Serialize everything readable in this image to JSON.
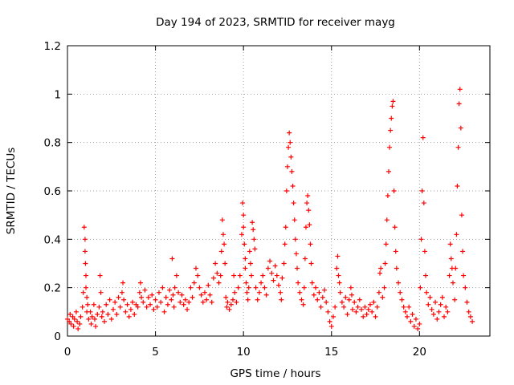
{
  "chart_data": {
    "type": "scatter",
    "title": "Day 194 of 2023, SRMTID for receiver mayg",
    "xlabel": "GPS time / hours",
    "ylabel": "SRMTID / TECUs",
    "xlim": [
      0,
      24
    ],
    "ylim": [
      0,
      1.2
    ],
    "xticks": [
      0,
      5,
      10,
      15,
      20
    ],
    "xtick_labels": [
      "0",
      "5",
      "10",
      "15",
      "20"
    ],
    "yticks": [
      0,
      0.2,
      0.4,
      0.6,
      0.8,
      1.0,
      1.2
    ],
    "ytick_labels": [
      "0",
      "0.2",
      "0.4",
      "0.6",
      "0.8",
      "1",
      "1.2"
    ],
    "grid": true,
    "marker": "+",
    "color": "#ff0000",
    "series": [
      {
        "name": "SRMTID",
        "points": [
          [
            0.0,
            0.07
          ],
          [
            0.1,
            0.06
          ],
          [
            0.15,
            0.09
          ],
          [
            0.2,
            0.05
          ],
          [
            0.3,
            0.08
          ],
          [
            0.35,
            0.04
          ],
          [
            0.4,
            0.07
          ],
          [
            0.5,
            0.1
          ],
          [
            0.55,
            0.06
          ],
          [
            0.6,
            0.03
          ],
          [
            0.7,
            0.05
          ],
          [
            0.75,
            0.08
          ],
          [
            0.85,
            0.12
          ],
          [
            0.9,
            0.18
          ],
          [
            0.95,
            0.45
          ],
          [
            1.0,
            0.4
          ],
          [
            1.0,
            0.35
          ],
          [
            1.02,
            0.3
          ],
          [
            1.05,
            0.25
          ],
          [
            1.05,
            0.2
          ],
          [
            1.1,
            0.16
          ],
          [
            1.1,
            0.1
          ],
          [
            1.15,
            0.13
          ],
          [
            1.2,
            0.07
          ],
          [
            1.3,
            0.1
          ],
          [
            1.35,
            0.05
          ],
          [
            1.4,
            0.08
          ],
          [
            1.5,
            0.13
          ],
          [
            1.55,
            0.07
          ],
          [
            1.6,
            0.04
          ],
          [
            1.7,
            0.09
          ],
          [
            1.8,
            0.12
          ],
          [
            1.85,
            0.25
          ],
          [
            1.9,
            0.18
          ],
          [
            1.95,
            0.08
          ],
          [
            2.0,
            0.1
          ],
          [
            2.1,
            0.06
          ],
          [
            2.2,
            0.13
          ],
          [
            2.3,
            0.09
          ],
          [
            2.4,
            0.15
          ],
          [
            2.5,
            0.07
          ],
          [
            2.6,
            0.11
          ],
          [
            2.7,
            0.14
          ],
          [
            2.8,
            0.09
          ],
          [
            2.9,
            0.16
          ],
          [
            3.0,
            0.12
          ],
          [
            3.1,
            0.18
          ],
          [
            3.15,
            0.22
          ],
          [
            3.2,
            0.15
          ],
          [
            3.3,
            0.1
          ],
          [
            3.4,
            0.13
          ],
          [
            3.5,
            0.08
          ],
          [
            3.6,
            0.11
          ],
          [
            3.7,
            0.14
          ],
          [
            3.8,
            0.09
          ],
          [
            3.9,
            0.13
          ],
          [
            4.0,
            0.12
          ],
          [
            4.1,
            0.18
          ],
          [
            4.15,
            0.22
          ],
          [
            4.2,
            0.16
          ],
          [
            4.3,
            0.14
          ],
          [
            4.4,
            0.19
          ],
          [
            4.5,
            0.12
          ],
          [
            4.6,
            0.16
          ],
          [
            4.7,
            0.13
          ],
          [
            4.8,
            0.17
          ],
          [
            4.9,
            0.11
          ],
          [
            5.0,
            0.15
          ],
          [
            5.1,
            0.12
          ],
          [
            5.2,
            0.18
          ],
          [
            5.3,
            0.14
          ],
          [
            5.4,
            0.2
          ],
          [
            5.5,
            0.1
          ],
          [
            5.6,
            0.16
          ],
          [
            5.7,
            0.13
          ],
          [
            5.8,
            0.19
          ],
          [
            5.9,
            0.15
          ],
          [
            5.95,
            0.32
          ],
          [
            6.0,
            0.17
          ],
          [
            6.05,
            0.12
          ],
          [
            6.1,
            0.2
          ],
          [
            6.2,
            0.25
          ],
          [
            6.3,
            0.18
          ],
          [
            6.4,
            0.14
          ],
          [
            6.5,
            0.17
          ],
          [
            6.6,
            0.13
          ],
          [
            6.7,
            0.15
          ],
          [
            6.8,
            0.11
          ],
          [
            6.9,
            0.14
          ],
          [
            7.0,
            0.2
          ],
          [
            7.1,
            0.16
          ],
          [
            7.2,
            0.22
          ],
          [
            7.3,
            0.28
          ],
          [
            7.4,
            0.25
          ],
          [
            7.5,
            0.2
          ],
          [
            7.6,
            0.17
          ],
          [
            7.7,
            0.14
          ],
          [
            7.8,
            0.18
          ],
          [
            7.9,
            0.15
          ],
          [
            8.0,
            0.21
          ],
          [
            8.1,
            0.17
          ],
          [
            8.2,
            0.14
          ],
          [
            8.3,
            0.24
          ],
          [
            8.4,
            0.3
          ],
          [
            8.5,
            0.26
          ],
          [
            8.6,
            0.22
          ],
          [
            8.7,
            0.25
          ],
          [
            8.75,
            0.35
          ],
          [
            8.8,
            0.48
          ],
          [
            8.85,
            0.42
          ],
          [
            8.9,
            0.38
          ],
          [
            8.95,
            0.3
          ],
          [
            9.0,
            0.16
          ],
          [
            9.05,
            0.12
          ],
          [
            9.1,
            0.14
          ],
          [
            9.2,
            0.11
          ],
          [
            9.3,
            0.13
          ],
          [
            9.4,
            0.15
          ],
          [
            9.45,
            0.25
          ],
          [
            9.5,
            0.18
          ],
          [
            9.6,
            0.14
          ],
          [
            9.7,
            0.2
          ],
          [
            9.8,
            0.25
          ],
          [
            9.9,
            0.42
          ],
          [
            9.95,
            0.55
          ],
          [
            10.0,
            0.5
          ],
          [
            10.0,
            0.45
          ],
          [
            10.05,
            0.38
          ],
          [
            10.1,
            0.32
          ],
          [
            10.1,
            0.28
          ],
          [
            10.15,
            0.22
          ],
          [
            10.2,
            0.18
          ],
          [
            10.25,
            0.15
          ],
          [
            10.3,
            0.2
          ],
          [
            10.35,
            0.35
          ],
          [
            10.4,
            0.3
          ],
          [
            10.45,
            0.25
          ],
          [
            10.5,
            0.47
          ],
          [
            10.55,
            0.44
          ],
          [
            10.6,
            0.4
          ],
          [
            10.65,
            0.36
          ],
          [
            10.7,
            0.2
          ],
          [
            10.8,
            0.15
          ],
          [
            10.9,
            0.18
          ],
          [
            11.0,
            0.22
          ],
          [
            11.1,
            0.25
          ],
          [
            11.2,
            0.2
          ],
          [
            11.3,
            0.17
          ],
          [
            11.4,
            0.28
          ],
          [
            11.5,
            0.31
          ],
          [
            11.6,
            0.26
          ],
          [
            11.7,
            0.23
          ],
          [
            11.8,
            0.29
          ],
          [
            11.9,
            0.25
          ],
          [
            12.0,
            0.21
          ],
          [
            12.1,
            0.18
          ],
          [
            12.15,
            0.15
          ],
          [
            12.2,
            0.24
          ],
          [
            12.3,
            0.3
          ],
          [
            12.35,
            0.38
          ],
          [
            12.4,
            0.45
          ],
          [
            12.45,
            0.6
          ],
          [
            12.5,
            0.7
          ],
          [
            12.55,
            0.78
          ],
          [
            12.6,
            0.84
          ],
          [
            12.65,
            0.8
          ],
          [
            12.7,
            0.74
          ],
          [
            12.75,
            0.68
          ],
          [
            12.8,
            0.62
          ],
          [
            12.85,
            0.55
          ],
          [
            12.9,
            0.48
          ],
          [
            12.95,
            0.4
          ],
          [
            13.0,
            0.34
          ],
          [
            13.05,
            0.28
          ],
          [
            13.1,
            0.22
          ],
          [
            13.2,
            0.18
          ],
          [
            13.3,
            0.15
          ],
          [
            13.4,
            0.13
          ],
          [
            13.45,
            0.2
          ],
          [
            13.5,
            0.32
          ],
          [
            13.55,
            0.45
          ],
          [
            13.6,
            0.55
          ],
          [
            13.65,
            0.58
          ],
          [
            13.7,
            0.52
          ],
          [
            13.75,
            0.46
          ],
          [
            13.8,
            0.38
          ],
          [
            13.85,
            0.3
          ],
          [
            13.9,
            0.22
          ],
          [
            14.0,
            0.17
          ],
          [
            14.1,
            0.2
          ],
          [
            14.2,
            0.15
          ],
          [
            14.3,
            0.18
          ],
          [
            14.4,
            0.12
          ],
          [
            14.5,
            0.16
          ],
          [
            14.6,
            0.19
          ],
          [
            14.7,
            0.14
          ],
          [
            14.8,
            0.1
          ],
          [
            14.9,
            0.06
          ],
          [
            15.0,
            0.04
          ],
          [
            15.1,
            0.08
          ],
          [
            15.2,
            0.12
          ],
          [
            15.3,
            0.28
          ],
          [
            15.35,
            0.33
          ],
          [
            15.4,
            0.25
          ],
          [
            15.45,
            0.22
          ],
          [
            15.5,
            0.18
          ],
          [
            15.6,
            0.14
          ],
          [
            15.7,
            0.12
          ],
          [
            15.8,
            0.16
          ],
          [
            15.9,
            0.09
          ],
          [
            16.0,
            0.15
          ],
          [
            16.1,
            0.2
          ],
          [
            16.15,
            0.17
          ],
          [
            16.2,
            0.11
          ],
          [
            16.3,
            0.14
          ],
          [
            16.4,
            0.1
          ],
          [
            16.5,
            0.12
          ],
          [
            16.6,
            0.15
          ],
          [
            16.7,
            0.11
          ],
          [
            16.8,
            0.08
          ],
          [
            16.9,
            0.12
          ],
          [
            17.0,
            0.09
          ],
          [
            17.1,
            0.11
          ],
          [
            17.2,
            0.13
          ],
          [
            17.3,
            0.1
          ],
          [
            17.4,
            0.14
          ],
          [
            17.5,
            0.08
          ],
          [
            17.6,
            0.12
          ],
          [
            17.7,
            0.18
          ],
          [
            17.75,
            0.26
          ],
          [
            17.8,
            0.28
          ],
          [
            17.9,
            0.16
          ],
          [
            18.0,
            0.2
          ],
          [
            18.05,
            0.3
          ],
          [
            18.1,
            0.38
          ],
          [
            18.15,
            0.48
          ],
          [
            18.2,
            0.58
          ],
          [
            18.25,
            0.68
          ],
          [
            18.3,
            0.78
          ],
          [
            18.35,
            0.85
          ],
          [
            18.4,
            0.9
          ],
          [
            18.45,
            0.95
          ],
          [
            18.5,
            0.97
          ],
          [
            18.55,
            0.6
          ],
          [
            18.6,
            0.45
          ],
          [
            18.65,
            0.35
          ],
          [
            18.7,
            0.28
          ],
          [
            18.8,
            0.22
          ],
          [
            18.9,
            0.18
          ],
          [
            19.0,
            0.15
          ],
          [
            19.1,
            0.12
          ],
          [
            19.2,
            0.1
          ],
          [
            19.3,
            0.08
          ],
          [
            19.4,
            0.12
          ],
          [
            19.5,
            0.06
          ],
          [
            19.6,
            0.09
          ],
          [
            19.7,
            0.04
          ],
          [
            19.8,
            0.07
          ],
          [
            19.9,
            0.03
          ],
          [
            20.0,
            0.05
          ],
          [
            20.05,
            0.2
          ],
          [
            20.1,
            0.4
          ],
          [
            20.15,
            0.6
          ],
          [
            20.2,
            0.82
          ],
          [
            20.25,
            0.55
          ],
          [
            20.3,
            0.35
          ],
          [
            20.35,
            0.25
          ],
          [
            20.4,
            0.18
          ],
          [
            20.5,
            0.13
          ],
          [
            20.6,
            0.16
          ],
          [
            20.7,
            0.11
          ],
          [
            20.8,
            0.09
          ],
          [
            20.9,
            0.14
          ],
          [
            21.0,
            0.07
          ],
          [
            21.1,
            0.1
          ],
          [
            21.2,
            0.13
          ],
          [
            21.3,
            0.16
          ],
          [
            21.4,
            0.08
          ],
          [
            21.5,
            0.12
          ],
          [
            21.6,
            0.1
          ],
          [
            21.7,
            0.25
          ],
          [
            21.75,
            0.38
          ],
          [
            21.8,
            0.32
          ],
          [
            21.85,
            0.28
          ],
          [
            21.9,
            0.22
          ],
          [
            22.0,
            0.15
          ],
          [
            22.05,
            0.28
          ],
          [
            22.1,
            0.42
          ],
          [
            22.15,
            0.62
          ],
          [
            22.2,
            0.78
          ],
          [
            22.25,
            0.96
          ],
          [
            22.3,
            1.02
          ],
          [
            22.35,
            0.86
          ],
          [
            22.4,
            0.5
          ],
          [
            22.45,
            0.35
          ],
          [
            22.5,
            0.25
          ],
          [
            22.6,
            0.2
          ],
          [
            22.7,
            0.14
          ],
          [
            22.8,
            0.1
          ],
          [
            22.9,
            0.08
          ],
          [
            23.0,
            0.06
          ]
        ]
      }
    ]
  }
}
